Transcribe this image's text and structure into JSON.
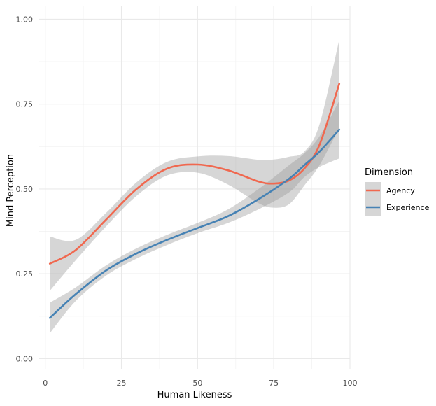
{
  "chart_data": {
    "type": "line",
    "title": "",
    "xlabel": "Human Likeness",
    "ylabel": "Mind Perception",
    "xlim": [
      -2,
      100
    ],
    "ylim": [
      -0.03,
      1.04
    ],
    "x_ticks": [
      0,
      25,
      50,
      75,
      100
    ],
    "x_tick_labels": [
      "0",
      "25",
      "50",
      "75",
      "100"
    ],
    "y_ticks": [
      0,
      0.25,
      0.5,
      0.75,
      1.0
    ],
    "y_tick_labels": [
      "0.00",
      "0.25",
      "0.50",
      "0.75",
      "1.00"
    ],
    "grid": true,
    "legend": {
      "title": "Dimension",
      "position": "right"
    },
    "series": [
      {
        "name": "Agency",
        "color": "#f0684f",
        "x": [
          1.5,
          10,
          20,
          30,
          40,
          50,
          60,
          70,
          75,
          80,
          85,
          90,
          96.5
        ],
        "y": [
          0.28,
          0.32,
          0.41,
          0.5,
          0.56,
          0.572,
          0.555,
          0.522,
          0.516,
          0.525,
          0.56,
          0.63,
          0.81
        ],
        "lower": [
          0.2,
          0.29,
          0.39,
          0.48,
          0.54,
          0.548,
          0.513,
          0.458,
          0.445,
          0.455,
          0.51,
          0.57,
          0.68
        ],
        "upper": [
          0.36,
          0.35,
          0.43,
          0.52,
          0.58,
          0.596,
          0.597,
          0.586,
          0.587,
          0.595,
          0.61,
          0.69,
          0.94
        ]
      },
      {
        "name": "Experience",
        "color": "#4682b4",
        "x": [
          1.5,
          10,
          20,
          30,
          40,
          50,
          60,
          70,
          80,
          85,
          90,
          96.5
        ],
        "y": [
          0.12,
          0.19,
          0.26,
          0.31,
          0.35,
          0.385,
          0.42,
          0.47,
          0.53,
          0.57,
          0.61,
          0.675
        ],
        "lower": [
          0.075,
          0.17,
          0.245,
          0.295,
          0.335,
          0.37,
          0.4,
          0.44,
          0.49,
          0.535,
          0.565,
          0.59
        ],
        "upper": [
          0.165,
          0.21,
          0.275,
          0.325,
          0.365,
          0.4,
          0.44,
          0.5,
          0.57,
          0.605,
          0.655,
          0.76
        ]
      }
    ]
  }
}
